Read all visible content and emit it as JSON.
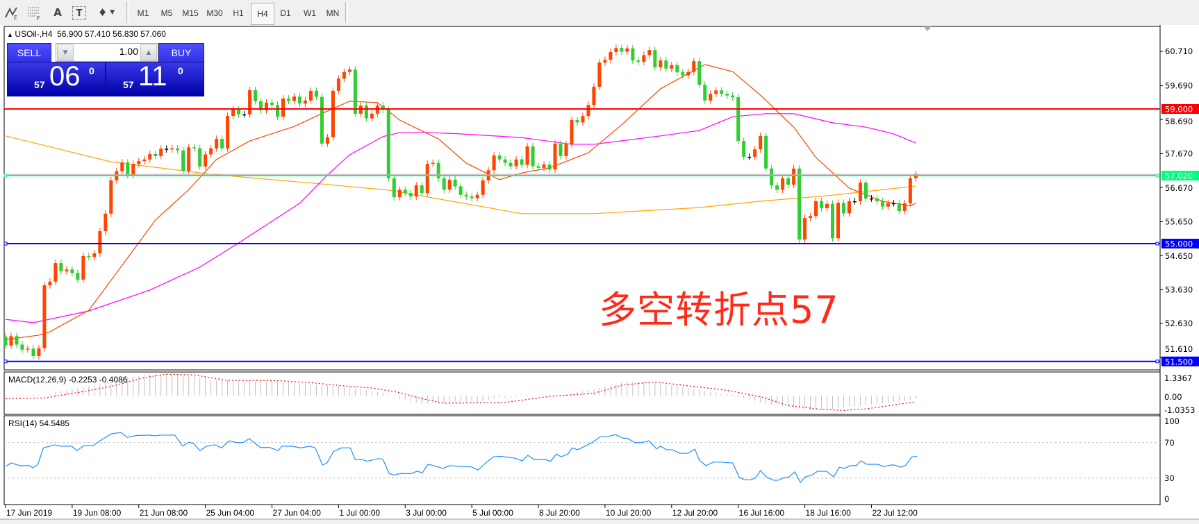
{
  "toolbar": {
    "icons": [
      "elliott-wave-icon",
      "fibonacci-icon",
      "text-icon",
      "text-label-icon",
      "arrows-icon"
    ],
    "icon_glyphs": {
      "elliott": "E",
      "fibo": "F",
      "text": "A",
      "label": "T",
      "arrows": "♦"
    },
    "timeframes": [
      "M1",
      "M5",
      "M15",
      "M30",
      "H1",
      "H4",
      "D1",
      "W1",
      "MN"
    ],
    "active_timeframe": "H4"
  },
  "chart_header": {
    "symbol": "USOil-,H4",
    "ohlc": "56.900 57.410 56.830 57.060"
  },
  "trade_panel": {
    "sell_label": "SELL",
    "buy_label": "BUY",
    "lot": "1.00",
    "sell_price_big": "57",
    "sell_price_main": "06",
    "sell_price_sup": "0",
    "buy_price_big": "57",
    "buy_price_main": "11",
    "buy_price_sup": "0"
  },
  "annotation": "多空转折点57",
  "price_axis": {
    "labels": [
      "60.710",
      "59.690",
      "58.690",
      "57.670",
      "56.670",
      "55.650",
      "54.650",
      "53.630",
      "52.630",
      "51.610"
    ],
    "levels": [
      {
        "price": 59.0,
        "label": "59.000",
        "color": "#ff0000"
      },
      {
        "price": 57.02,
        "label": "57.020",
        "color": "#00ff7f"
      },
      {
        "price": 55.0,
        "label": "55.000",
        "color": "#0000ff"
      },
      {
        "price": 51.5,
        "label": "51.500",
        "color": "#0000ff"
      }
    ],
    "bid": 57.06
  },
  "macd": {
    "title": "MACD(12,26,9) -0.2253 -0.4086",
    "axis_labels": [
      "1.3367",
      "0.00",
      "-1.0353"
    ],
    "axis_values": [
      1.3367,
      0,
      -1.0353
    ]
  },
  "rsi": {
    "title": "RSI(14) 54.5485",
    "axis_labels": [
      "100",
      "70",
      "30",
      "0"
    ],
    "axis_values": [
      100,
      70,
      30,
      0
    ],
    "levels": [
      70,
      30
    ]
  },
  "time_axis": {
    "labels": [
      {
        "bar": 0,
        "text": "17 Jun 2019"
      },
      {
        "bar": 12,
        "text": "19 Jun 08:00"
      },
      {
        "bar": 24,
        "text": "21 Jun 08:00"
      },
      {
        "bar": 36,
        "text": "25 Jun 04:00"
      },
      {
        "bar": 48,
        "text": "27 Jun 04:00"
      },
      {
        "bar": 60,
        "text": "1 Jul 00:00"
      },
      {
        "bar": 72,
        "text": "3 Jul 00:00"
      },
      {
        "bar": 84,
        "text": "5 Jul 00:00"
      },
      {
        "bar": 96,
        "text": "8 Jul 20:00"
      },
      {
        "bar": 108,
        "text": "10 Jul 20:00"
      },
      {
        "bar": 120,
        "text": "12 Jul 20:00"
      },
      {
        "bar": 132,
        "text": "16 Jul 16:00"
      },
      {
        "bar": 144,
        "text": "18 Jul 16:00"
      },
      {
        "bar": 156,
        "text": "22 Jul 12:00"
      }
    ]
  },
  "colors": {
    "bull": "#ff4500",
    "bear": "#32cd32",
    "ma_fast": "#ff4500",
    "ma_mid": "#ff00ff",
    "ma_slow": "#ffa500",
    "macd_hist": "#c0c0c0",
    "macd_signal": "#ff0000",
    "rsi": "#1e90ff"
  },
  "chart_data": {
    "type": "candlestick",
    "symbol": "USOil-",
    "timeframe": "H4",
    "first_open": 52.24,
    "ylim": [
      51.4,
      61.2
    ],
    "close": [
      51.97,
      52.25,
      52.0,
      51.85,
      51.88,
      51.66,
      51.89,
      53.76,
      53.87,
      54.42,
      54.18,
      54.23,
      54.13,
      53.93,
      54.63,
      54.6,
      54.71,
      55.37,
      55.89,
      56.88,
      57.15,
      57.41,
      57.04,
      57.37,
      57.45,
      57.5,
      57.66,
      57.6,
      57.82,
      57.8,
      57.83,
      57.77,
      57.16,
      57.86,
      57.83,
      57.29,
      57.65,
      57.83,
      58.11,
      57.83,
      58.79,
      58.98,
      58.84,
      58.84,
      59.56,
      59.23,
      58.96,
      59.19,
      59.12,
      58.77,
      59.31,
      59.24,
      59.37,
      59.16,
      59.25,
      59.54,
      59.36,
      57.97,
      58.16,
      59.54,
      59.9,
      60.1,
      60.17,
      58.86,
      59.1,
      58.72,
      58.86,
      59.1,
      58.98,
      56.94,
      56.38,
      56.6,
      56.5,
      56.4,
      56.73,
      56.5,
      57.37,
      57.4,
      56.94,
      56.6,
      56.9,
      56.7,
      56.45,
      56.4,
      56.35,
      56.45,
      56.88,
      57.18,
      57.62,
      57.5,
      57.4,
      57.3,
      57.5,
      57.34,
      57.89,
      57.3,
      57.25,
      57.35,
      57.2,
      57.97,
      57.6,
      57.95,
      58.67,
      58.6,
      58.79,
      59.12,
      59.66,
      60.38,
      60.46,
      60.69,
      60.81,
      60.7,
      60.8,
      60.44,
      60.4,
      60.6,
      60.75,
      60.24,
      60.44,
      60.2,
      60.3,
      60.09,
      60.0,
      60.1,
      60.42,
      59.72,
      59.25,
      59.45,
      59.55,
      59.45,
      59.4,
      59.35,
      58.05,
      57.58,
      57.58,
      57.8,
      58.2,
      57.23,
      56.73,
      56.6,
      56.94,
      56.75,
      57.23,
      55.12,
      55.76,
      55.82,
      56.26,
      56.05,
      56.18,
      55.16,
      56.21,
      55.9,
      56.26,
      56.26,
      56.81,
      56.34,
      56.34,
      56.26,
      56.1,
      56.2,
      56.2,
      55.97,
      56.2,
      56.94,
      57.06
    ],
    "ma_fast": [
      [
        0,
        52.15
      ],
      [
        6,
        52.28
      ],
      [
        8,
        52.38
      ],
      [
        15,
        53.02
      ],
      [
        20,
        54.13
      ],
      [
        27,
        55.7
      ],
      [
        33,
        56.6
      ],
      [
        38,
        57.5
      ],
      [
        44,
        58.05
      ],
      [
        52,
        58.48
      ],
      [
        58,
        58.94
      ],
      [
        62,
        59.23
      ],
      [
        67,
        59.19
      ],
      [
        71,
        58.67
      ],
      [
        78,
        58.11
      ],
      [
        83,
        57.39
      ],
      [
        89,
        56.9
      ],
      [
        93,
        57.1
      ],
      [
        98,
        57.25
      ],
      [
        105,
        57.7
      ],
      [
        111,
        58.53
      ],
      [
        118,
        59.6
      ],
      [
        126,
        60.32
      ],
      [
        131,
        60.11
      ],
      [
        136,
        59.41
      ],
      [
        142,
        58.46
      ],
      [
        146,
        57.56
      ],
      [
        152,
        56.65
      ],
      [
        158,
        56.26
      ],
      [
        163,
        56.12
      ],
      [
        164,
        56.2
      ]
    ],
    "ma_mid": [
      [
        0,
        52.75
      ],
      [
        5,
        52.65
      ],
      [
        15,
        53.0
      ],
      [
        26,
        53.62
      ],
      [
        35,
        54.3
      ],
      [
        42,
        55.02
      ],
      [
        53,
        56.2
      ],
      [
        58,
        57.04
      ],
      [
        62,
        57.64
      ],
      [
        68,
        58.18
      ],
      [
        71,
        58.3
      ],
      [
        76,
        58.3
      ],
      [
        82,
        58.26
      ],
      [
        93,
        58.15
      ],
      [
        102,
        57.95
      ],
      [
        106,
        57.95
      ],
      [
        118,
        58.2
      ],
      [
        125,
        58.36
      ],
      [
        131,
        58.77
      ],
      [
        137,
        58.86
      ],
      [
        142,
        58.86
      ],
      [
        149,
        58.59
      ],
      [
        155,
        58.46
      ],
      [
        160,
        58.26
      ],
      [
        164,
        57.99
      ]
    ],
    "ma_slow": [
      [
        0,
        58.2
      ],
      [
        19,
        57.43
      ],
      [
        37,
        57.06
      ],
      [
        55,
        56.8
      ],
      [
        69,
        56.59
      ],
      [
        93,
        55.89
      ],
      [
        106,
        55.89
      ],
      [
        125,
        56.07
      ],
      [
        136,
        56.26
      ],
      [
        148,
        56.42
      ],
      [
        164,
        56.71
      ]
    ],
    "macd_hist": [
      [
        0,
        0.05
      ],
      [
        7,
        0.05
      ],
      [
        9,
        0.22
      ],
      [
        13,
        0.5
      ],
      [
        17,
        0.73
      ],
      [
        21,
        1.1
      ],
      [
        25,
        1.36
      ],
      [
        29,
        1.4
      ],
      [
        34,
        1.27
      ],
      [
        38,
        1.0
      ],
      [
        44,
        0.95
      ],
      [
        49,
        0.93
      ],
      [
        55,
        0.73
      ],
      [
        60,
        0.64
      ],
      [
        65,
        0.36
      ],
      [
        68,
        0.18
      ],
      [
        72,
        -0.27
      ],
      [
        75,
        -0.55
      ],
      [
        78,
        -0.5
      ],
      [
        85,
        -0.45
      ],
      [
        88,
        -0.2
      ],
      [
        93,
        -0.05
      ],
      [
        100,
        0.05
      ],
      [
        102,
        0.15
      ],
      [
        107,
        0.5
      ],
      [
        111,
        0.9
      ],
      [
        117,
        0.9
      ],
      [
        120,
        0.68
      ],
      [
        124,
        0.45
      ],
      [
        128,
        0.2
      ],
      [
        131,
        0.05
      ],
      [
        133,
        -0.2
      ],
      [
        136,
        -0.45
      ],
      [
        139,
        -0.65
      ],
      [
        144,
        -0.9
      ],
      [
        145,
        -0.97
      ],
      [
        149,
        -0.87
      ],
      [
        154,
        -0.65
      ],
      [
        158,
        -0.5
      ],
      [
        162,
        -0.36
      ],
      [
        164,
        -0.22
      ]
    ],
    "macd_signal": [
      [
        0,
        -0.2
      ],
      [
        7,
        -0.15
      ],
      [
        13,
        0.2
      ],
      [
        19,
        0.6
      ],
      [
        25,
        1.18
      ],
      [
        29,
        1.4
      ],
      [
        34,
        1.35
      ],
      [
        40,
        1.0
      ],
      [
        49,
        0.98
      ],
      [
        55,
        0.85
      ],
      [
        61,
        0.64
      ],
      [
        66,
        0.5
      ],
      [
        71,
        0.2
      ],
      [
        75,
        -0.2
      ],
      [
        79,
        -0.5
      ],
      [
        90,
        -0.45
      ],
      [
        98,
        -0.05
      ],
      [
        106,
        0.15
      ],
      [
        111,
        0.68
      ],
      [
        117,
        0.9
      ],
      [
        122,
        0.68
      ],
      [
        130,
        0.35
      ],
      [
        136,
        -0.07
      ],
      [
        141,
        -0.65
      ],
      [
        147,
        -0.9
      ],
      [
        151,
        -0.97
      ],
      [
        155,
        -0.87
      ],
      [
        164,
        -0.41
      ]
    ],
    "rsi": [
      [
        0,
        43
      ],
      [
        1,
        47
      ],
      [
        2.6,
        44
      ],
      [
        4.3,
        44
      ],
      [
        4.9,
        41.5
      ],
      [
        5.8,
        45
      ],
      [
        6.8,
        64
      ],
      [
        8.8,
        67.5
      ],
      [
        9.9,
        66
      ],
      [
        11.9,
        66
      ],
      [
        12.9,
        61
      ],
      [
        14.1,
        66.7
      ],
      [
        15.8,
        66.7
      ],
      [
        17.4,
        73.7
      ],
      [
        19.1,
        80
      ],
      [
        20.8,
        81.5
      ],
      [
        21.9,
        76
      ],
      [
        23.5,
        78
      ],
      [
        25.8,
        78.5
      ],
      [
        26.9,
        77.7
      ],
      [
        28,
        78.5
      ],
      [
        30.5,
        78.5
      ],
      [
        31.9,
        66
      ],
      [
        33,
        70.5
      ],
      [
        33.9,
        69
      ],
      [
        35,
        61
      ],
      [
        36.2,
        66
      ],
      [
        37.8,
        67.5
      ],
      [
        38.9,
        64
      ],
      [
        40.3,
        72
      ],
      [
        41.7,
        70
      ],
      [
        42.8,
        70
      ],
      [
        43.9,
        74.5
      ],
      [
        45.9,
        64.5
      ],
      [
        47.6,
        64.5
      ],
      [
        49.1,
        61
      ],
      [
        49.8,
        66
      ],
      [
        51.6,
        66
      ],
      [
        53.2,
        64
      ],
      [
        54.8,
        66
      ],
      [
        55.8,
        64
      ],
      [
        57.1,
        44.7
      ],
      [
        57.9,
        47
      ],
      [
        59.1,
        60
      ],
      [
        60.5,
        64
      ],
      [
        62.1,
        64
      ],
      [
        63,
        51
      ],
      [
        64.1,
        51
      ],
      [
        65.2,
        49
      ],
      [
        67.2,
        52
      ],
      [
        68,
        51
      ],
      [
        69.1,
        35
      ],
      [
        70,
        33.4
      ],
      [
        71.1,
        35
      ],
      [
        73.1,
        35
      ],
      [
        74.1,
        37.6
      ],
      [
        75.1,
        36
      ],
      [
        76.1,
        45.5
      ],
      [
        77.2,
        44
      ],
      [
        78.8,
        40.8
      ],
      [
        80,
        44
      ],
      [
        82,
        43
      ],
      [
        84,
        42.5
      ],
      [
        85.1,
        39
      ],
      [
        86.5,
        47
      ],
      [
        87.9,
        54
      ],
      [
        89.2,
        54.5
      ],
      [
        91.7,
        52.5
      ],
      [
        93.1,
        49.4
      ],
      [
        94.1,
        55.7
      ],
      [
        95.2,
        51
      ],
      [
        97.1,
        51
      ],
      [
        98.2,
        49
      ],
      [
        99.2,
        57
      ],
      [
        100.1,
        54
      ],
      [
        101.3,
        57
      ],
      [
        102.1,
        64
      ],
      [
        103.1,
        62
      ],
      [
        105.8,
        70.5
      ],
      [
        107.1,
        76.6
      ],
      [
        108.3,
        76.6
      ],
      [
        109.9,
        79
      ],
      [
        111.3,
        75
      ],
      [
        112,
        75
      ],
      [
        113.4,
        70
      ],
      [
        114.5,
        70
      ],
      [
        115.9,
        72
      ],
      [
        117.3,
        63
      ],
      [
        118,
        66
      ],
      [
        119.1,
        62
      ],
      [
        120.1,
        62
      ],
      [
        121.5,
        58
      ],
      [
        122.9,
        58
      ],
      [
        124.2,
        62.7
      ],
      [
        125,
        50
      ],
      [
        126.2,
        44
      ],
      [
        127.5,
        48
      ],
      [
        128.7,
        48
      ],
      [
        131,
        47
      ],
      [
        132.2,
        30.6
      ],
      [
        133.2,
        28
      ],
      [
        134.3,
        28
      ],
      [
        135.2,
        30.6
      ],
      [
        136,
        38.4
      ],
      [
        137.2,
        30.6
      ],
      [
        138.4,
        27.5
      ],
      [
        139.2,
        27.5
      ],
      [
        140.3,
        30.6
      ],
      [
        141,
        30.6
      ],
      [
        142.2,
        37
      ],
      [
        143.2,
        25
      ],
      [
        144.1,
        31.4
      ],
      [
        145.2,
        33
      ],
      [
        146.3,
        37.6
      ],
      [
        147.9,
        37.6
      ],
      [
        149.2,
        31.4
      ],
      [
        150.2,
        42
      ],
      [
        151.2,
        41
      ],
      [
        152.2,
        44
      ],
      [
        153.3,
        44
      ],
      [
        154.1,
        49.4
      ],
      [
        155.2,
        45.5
      ],
      [
        157.1,
        45.5
      ],
      [
        158.2,
        43
      ],
      [
        159.6,
        44.7
      ],
      [
        160.1,
        44.7
      ],
      [
        161.3,
        42.3
      ],
      [
        162.2,
        44.7
      ],
      [
        163.3,
        54
      ],
      [
        164.2,
        54.5
      ]
    ]
  }
}
